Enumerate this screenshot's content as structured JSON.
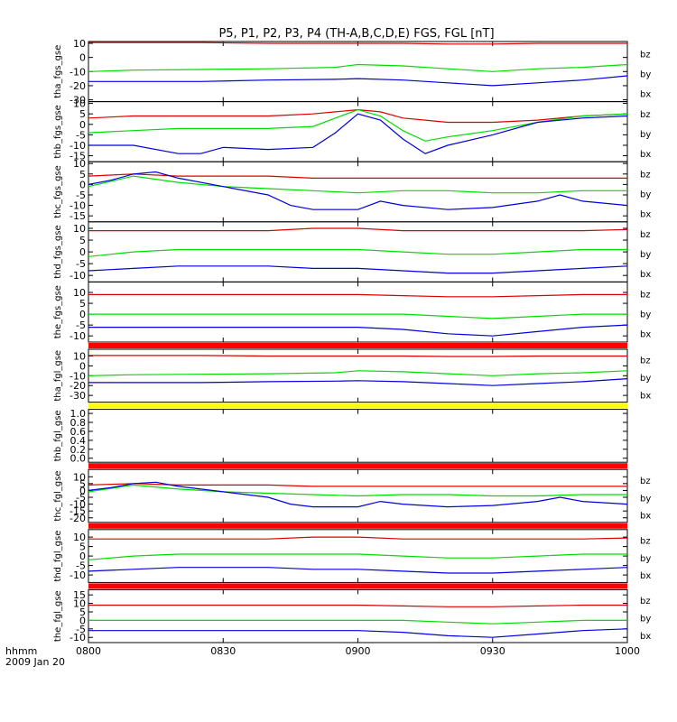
{
  "chart_data": {
    "type": "line",
    "title": "P5, P1, P2, P3, P4 (TH-A,B,C,D,E) FGS, FGL [nT]",
    "x_axis": {
      "ticks": [
        "0800",
        "0830",
        "0900",
        "0930",
        "1000"
      ],
      "range_minutes": [
        0,
        120
      ],
      "label_lines": [
        "hhmm",
        "2009 Jan 20"
      ]
    },
    "series_names": [
      "bz",
      "by",
      "bx"
    ],
    "series_colors": {
      "bz": "#dd0000",
      "by": "#00dd00",
      "bx": "#0000dd"
    },
    "bar_colors": {
      "red": "#ff0000",
      "yellow": "#ffff00"
    },
    "panels": [
      {
        "label": "tha_fgs_gse",
        "ylim": [
          -30,
          10
        ],
        "yticks": [
          10,
          0,
          -10,
          -20,
          -30
        ],
        "bar_above": null,
        "series": {
          "bz": {
            "x": [
              0,
              10,
              25,
              40,
              55,
              60,
              70,
              80,
              90,
              100,
              110,
              120
            ],
            "y": [
              10.5,
              10.5,
              10.5,
              10,
              10,
              10,
              10,
              9.5,
              9.5,
              10,
              10,
              10
            ]
          },
          "by": {
            "x": [
              0,
              10,
              25,
              40,
              55,
              60,
              70,
              80,
              90,
              100,
              110,
              120
            ],
            "y": [
              -10,
              -9,
              -8.5,
              -8,
              -7,
              -5,
              -6,
              -8,
              -10,
              -8,
              -7,
              -5
            ]
          },
          "bx": {
            "x": [
              0,
              10,
              25,
              40,
              55,
              60,
              70,
              80,
              90,
              100,
              110,
              120
            ],
            "y": [
              -17,
              -17,
              -17,
              -16,
              -15.5,
              -15,
              -16,
              -18,
              -20,
              -18,
              -16,
              -13
            ]
          }
        }
      },
      {
        "label": "thb_fgs_gse",
        "ylim": [
          -17,
          10
        ],
        "yticks": [
          10,
          5,
          0,
          -5,
          -10,
          -15
        ],
        "bar_above": null,
        "series": {
          "bz": {
            "x": [
              0,
              10,
              20,
              30,
              40,
              50,
              55,
              60,
              65,
              70,
              75,
              80,
              90,
              100,
              110,
              120
            ],
            "y": [
              3,
              4,
              4,
              4,
              4,
              5,
              6,
              7,
              6,
              3,
              2,
              1,
              1,
              2,
              4,
              5
            ]
          },
          "by": {
            "x": [
              0,
              10,
              20,
              30,
              40,
              50,
              55,
              60,
              65,
              70,
              75,
              80,
              90,
              100,
              110,
              120
            ],
            "y": [
              -4,
              -3,
              -2,
              -2,
              -2,
              -1,
              3,
              7,
              4,
              -3,
              -8,
              -6,
              -3,
              1,
              4,
              5
            ]
          },
          "bx": {
            "x": [
              0,
              10,
              20,
              25,
              30,
              40,
              50,
              55,
              60,
              65,
              70,
              75,
              80,
              90,
              100,
              110,
              120
            ],
            "y": [
              -10,
              -10,
              -14,
              -14,
              -11,
              -12,
              -11,
              -4,
              5,
              2,
              -7,
              -14,
              -10,
              -5,
              1,
              3,
              4
            ]
          }
        }
      },
      {
        "label": "thc_fgs_gse",
        "ylim": [
          -17,
          10
        ],
        "yticks": [
          10,
          5,
          0,
          -5,
          -10,
          -15
        ],
        "bar_above": null,
        "series": {
          "bz": {
            "x": [
              0,
              10,
              20,
              30,
              40,
              50,
              60,
              70,
              80,
              90,
              100,
              110,
              120
            ],
            "y": [
              4,
              5,
              4,
              4,
              4,
              3,
              3,
              3,
              3,
              3,
              3,
              3,
              3
            ]
          },
          "by": {
            "x": [
              0,
              10,
              20,
              30,
              40,
              50,
              60,
              70,
              80,
              90,
              100,
              110,
              120
            ],
            "y": [
              -1,
              4,
              1,
              -1,
              -2,
              -3,
              -4,
              -3,
              -3,
              -4,
              -4,
              -3,
              -3
            ]
          },
          "bx": {
            "x": [
              0,
              5,
              10,
              15,
              20,
              30,
              40,
              45,
              50,
              60,
              65,
              70,
              80,
              90,
              100,
              105,
              110,
              120
            ],
            "y": [
              0,
              2,
              5,
              6,
              3,
              -1,
              -5,
              -10,
              -12,
              -12,
              -8,
              -10,
              -12,
              -11,
              -8,
              -5,
              -8,
              -10
            ]
          }
        }
      },
      {
        "label": "thd_fgs_gse",
        "ylim": [
          -12,
          12
        ],
        "yticks": [
          10,
          5,
          0,
          -5,
          -10
        ],
        "bar_above": null,
        "series": {
          "bz": {
            "x": [
              0,
              10,
              20,
              30,
              40,
              50,
              60,
              70,
              80,
              90,
              100,
              110,
              120
            ],
            "y": [
              9,
              9,
              9,
              9,
              9,
              10,
              10,
              9,
              9,
              9,
              9,
              9,
              9.5
            ]
          },
          "by": {
            "x": [
              0,
              10,
              20,
              30,
              40,
              50,
              60,
              70,
              80,
              90,
              100,
              110,
              120
            ],
            "y": [
              -2,
              0,
              1,
              1,
              1,
              1,
              1,
              0,
              -1,
              -1,
              0,
              1,
              1
            ]
          },
          "bx": {
            "x": [
              0,
              10,
              20,
              30,
              40,
              50,
              60,
              70,
              80,
              90,
              100,
              110,
              120
            ],
            "y": [
              -8,
              -7,
              -6,
              -6,
              -6,
              -7,
              -7,
              -8,
              -9,
              -9,
              -8,
              -7,
              -6
            ]
          }
        }
      },
      {
        "label": "the_fgs_gse",
        "ylim": [
          -12,
          14
        ],
        "yticks": [
          10,
          5,
          0,
          -5,
          -10
        ],
        "bar_above": null,
        "series": {
          "bz": {
            "x": [
              0,
              10,
              20,
              30,
              40,
              50,
              60,
              70,
              80,
              90,
              100,
              110,
              120
            ],
            "y": [
              9,
              9,
              9,
              9,
              9,
              9,
              9,
              8.5,
              8,
              8,
              8.5,
              9,
              9
            ]
          },
          "by": {
            "x": [
              0,
              10,
              20,
              30,
              40,
              50,
              60,
              70,
              80,
              90,
              100,
              110,
              120
            ],
            "y": [
              0,
              0,
              0,
              0,
              0,
              0,
              0,
              0,
              -1,
              -2,
              -1,
              0,
              0
            ]
          },
          "bx": {
            "x": [
              0,
              10,
              20,
              30,
              40,
              50,
              60,
              70,
              80,
              90,
              100,
              110,
              120
            ],
            "y": [
              -6,
              -6,
              -6,
              -6,
              -6,
              -6,
              -6,
              -7,
              -9,
              -10,
              -8,
              -6,
              -5
            ]
          }
        }
      },
      {
        "label": "tha_fgl_gse",
        "ylim": [
          -35,
          15
        ],
        "yticks": [
          10,
          0,
          -10,
          -20,
          -30
        ],
        "bar_above": "red",
        "series": {
          "bz": {
            "x": [
              0,
              10,
              25,
              40,
              55,
              60,
              70,
              80,
              90,
              100,
              110,
              120
            ],
            "y": [
              10.5,
              10.5,
              10.5,
              10,
              10,
              10,
              10,
              9.5,
              9.5,
              10,
              10,
              10
            ]
          },
          "by": {
            "x": [
              0,
              10,
              25,
              40,
              55,
              60,
              70,
              80,
              90,
              100,
              110,
              120
            ],
            "y": [
              -10,
              -9,
              -8.5,
              -8,
              -7,
              -5,
              -6,
              -8,
              -10,
              -8,
              -7,
              -5
            ]
          },
          "bx": {
            "x": [
              0,
              10,
              25,
              40,
              55,
              60,
              70,
              80,
              90,
              100,
              110,
              120
            ],
            "y": [
              -17,
              -17,
              -17,
              -16,
              -15.5,
              -15,
              -16,
              -18,
              -20,
              -18,
              -16,
              -13
            ]
          }
        }
      },
      {
        "label": "thb_fgl_gse",
        "ylim": [
          -0.05,
          1.05
        ],
        "yticks": [
          "1.0",
          "0.8",
          "0.6",
          "0.4",
          "0.2",
          "0.0"
        ],
        "bar_above": "yellow",
        "series": {}
      },
      {
        "label": "thc_fgl_gse",
        "ylim": [
          -22,
          14
        ],
        "yticks": [
          10,
          5,
          0,
          -5,
          -10,
          -15,
          -20
        ],
        "bar_above": "red",
        "series": {
          "bz": {
            "x": [
              0,
              10,
              20,
              30,
              40,
              50,
              60,
              70,
              80,
              90,
              100,
              110,
              120
            ],
            "y": [
              4,
              5,
              4,
              4,
              4,
              3,
              3,
              3,
              3,
              3,
              3,
              3,
              3
            ]
          },
          "by": {
            "x": [
              0,
              10,
              20,
              30,
              40,
              50,
              60,
              70,
              80,
              90,
              100,
              110,
              120
            ],
            "y": [
              -1,
              4,
              1,
              -1,
              -2,
              -3,
              -4,
              -3,
              -3,
              -4,
              -4,
              -3,
              -3
            ]
          },
          "bx": {
            "x": [
              0,
              5,
              10,
              15,
              20,
              30,
              40,
              45,
              50,
              60,
              65,
              70,
              80,
              90,
              100,
              105,
              110,
              120
            ],
            "y": [
              0,
              2,
              5,
              6,
              3,
              -1,
              -5,
              -10,
              -12,
              -12,
              -8,
              -10,
              -12,
              -11,
              -8,
              -5,
              -8,
              -10
            ]
          }
        }
      },
      {
        "label": "thd_fgl_gse",
        "ylim": [
          -13,
          13
        ],
        "yticks": [
          10,
          5,
          0,
          -5,
          -10
        ],
        "bar_above": "red",
        "series": {
          "bz": {
            "x": [
              0,
              10,
              20,
              30,
              40,
              50,
              60,
              70,
              80,
              90,
              100,
              110,
              120
            ],
            "y": [
              9,
              9,
              9,
              9,
              9,
              10,
              10,
              9,
              9,
              9,
              9,
              9,
              9.5
            ]
          },
          "by": {
            "x": [
              0,
              10,
              20,
              30,
              40,
              50,
              60,
              70,
              80,
              90,
              100,
              110,
              120
            ],
            "y": [
              -2,
              0,
              1,
              1,
              1,
              1,
              1,
              0,
              -1,
              -1,
              0,
              1,
              1
            ]
          },
          "bx": {
            "x": [
              0,
              10,
              20,
              30,
              40,
              50,
              60,
              70,
              80,
              90,
              100,
              110,
              120
            ],
            "y": [
              -8,
              -7,
              -6,
              -6,
              -6,
              -7,
              -7,
              -8,
              -9,
              -9,
              -8,
              -7,
              -6
            ]
          }
        }
      },
      {
        "label": "the_fgl_gse",
        "ylim": [
          -12,
          17
        ],
        "yticks": [
          15,
          10,
          5,
          0,
          -5,
          -10
        ],
        "bar_above": "red",
        "series": {
          "bz": {
            "x": [
              0,
              10,
              20,
              30,
              40,
              50,
              60,
              70,
              80,
              90,
              100,
              110,
              120
            ],
            "y": [
              9,
              9,
              9,
              9,
              9,
              9,
              9,
              8.5,
              8,
              8,
              8.5,
              9,
              9
            ]
          },
          "by": {
            "x": [
              0,
              10,
              20,
              30,
              40,
              50,
              60,
              70,
              80,
              90,
              100,
              110,
              120
            ],
            "y": [
              0,
              0,
              0,
              0,
              0,
              0,
              0,
              0,
              -1,
              -2,
              -1,
              0,
              0
            ]
          },
          "bx": {
            "x": [
              0,
              10,
              20,
              30,
              40,
              50,
              60,
              70,
              80,
              90,
              100,
              110,
              120
            ],
            "y": [
              -6,
              -6,
              -6,
              -6,
              -6,
              -6,
              -6,
              -7,
              -9,
              -10,
              -8,
              -6,
              -5
            ]
          }
        }
      }
    ]
  }
}
